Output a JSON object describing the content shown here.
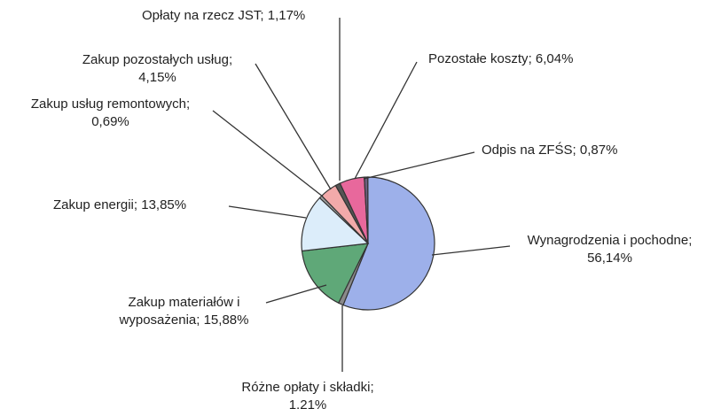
{
  "chart_data": {
    "type": "pie",
    "categories": [
      "Pozostałe koszty",
      "Odpis na ZFŚS",
      "Wynagrodzenia i pochodne",
      "Różne opłaty i składki",
      "Zakup materiałów i wyposażenia",
      "Zakup energii",
      "Zakup usług remontowych",
      "Zakup pozostałych usług",
      "Opłaty na rzecz JST"
    ],
    "values": [
      6.04,
      0.87,
      56.14,
      1.21,
      15.88,
      13.85,
      0.69,
      4.15,
      1.17
    ],
    "value_labels": [
      "6,04%",
      "0,87%",
      "56,14%",
      "1,21%",
      "15,88%",
      "13,85%",
      "0,69%",
      "4,15%",
      "1,17%"
    ],
    "label_separator": "; ",
    "colors": [
      "#e8689c",
      "#6e5f7e",
      "#9db0ea",
      "#8a8a8a",
      "#5fa878",
      "#dcedfa",
      "#a0a0a0",
      "#f2aaaa",
      "#555555"
    ]
  }
}
